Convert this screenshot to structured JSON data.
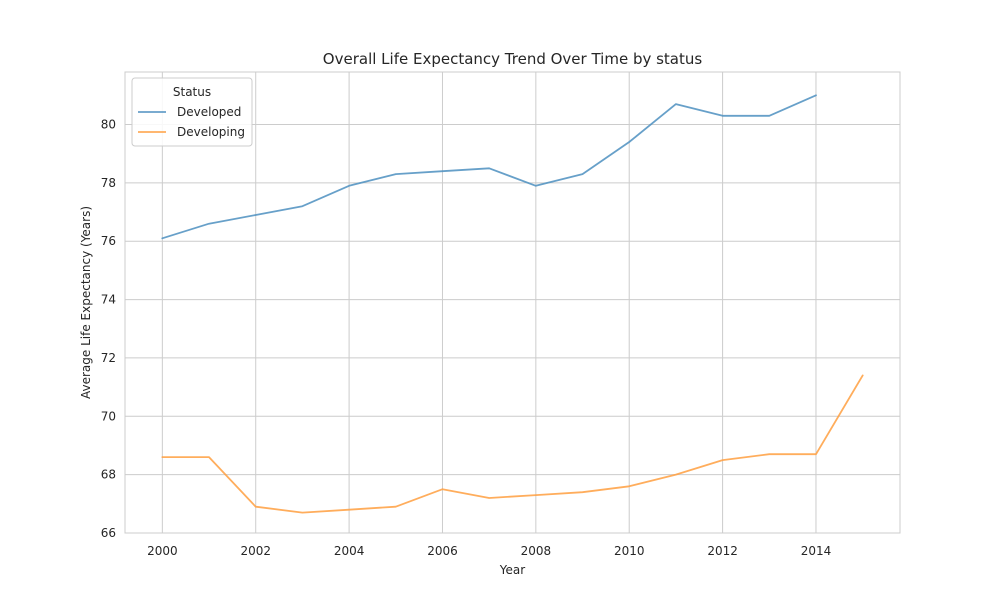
{
  "chart_data": {
    "type": "line",
    "title": "Overall Life Expectancy Trend Over Time by status",
    "xlabel": "Year",
    "ylabel": "Average Life Expectancy (Years)",
    "xlim": [
      1999.2,
      2015.8
    ],
    "ylim": [
      66,
      81.8
    ],
    "xticks": [
      2000,
      2002,
      2004,
      2006,
      2008,
      2010,
      2012,
      2014
    ],
    "yticks": [
      66,
      68,
      70,
      72,
      74,
      76,
      78,
      80
    ],
    "grid": true,
    "legend": {
      "title": "Status",
      "placement": "top-left"
    },
    "series": [
      {
        "name": "Developed",
        "color": "#4c8fc0",
        "x": [
          2000,
          2001,
          2002,
          2003,
          2004,
          2005,
          2006,
          2007,
          2008,
          2009,
          2010,
          2011,
          2012,
          2013,
          2014
        ],
        "y": [
          76.1,
          76.6,
          76.9,
          77.2,
          77.9,
          78.3,
          78.4,
          78.5,
          77.9,
          78.3,
          79.4,
          80.7,
          80.3,
          80.3,
          81.0
        ]
      },
      {
        "name": "Developing",
        "color": "#ff9f40",
        "x": [
          2000,
          2001,
          2002,
          2003,
          2004,
          2005,
          2006,
          2007,
          2008,
          2009,
          2010,
          2011,
          2012,
          2013,
          2014,
          2015
        ],
        "y": [
          68.6,
          68.6,
          66.9,
          66.7,
          66.8,
          66.9,
          67.5,
          67.2,
          67.3,
          67.4,
          67.6,
          68.0,
          68.5,
          68.7,
          68.7,
          71.4
        ]
      }
    ]
  }
}
